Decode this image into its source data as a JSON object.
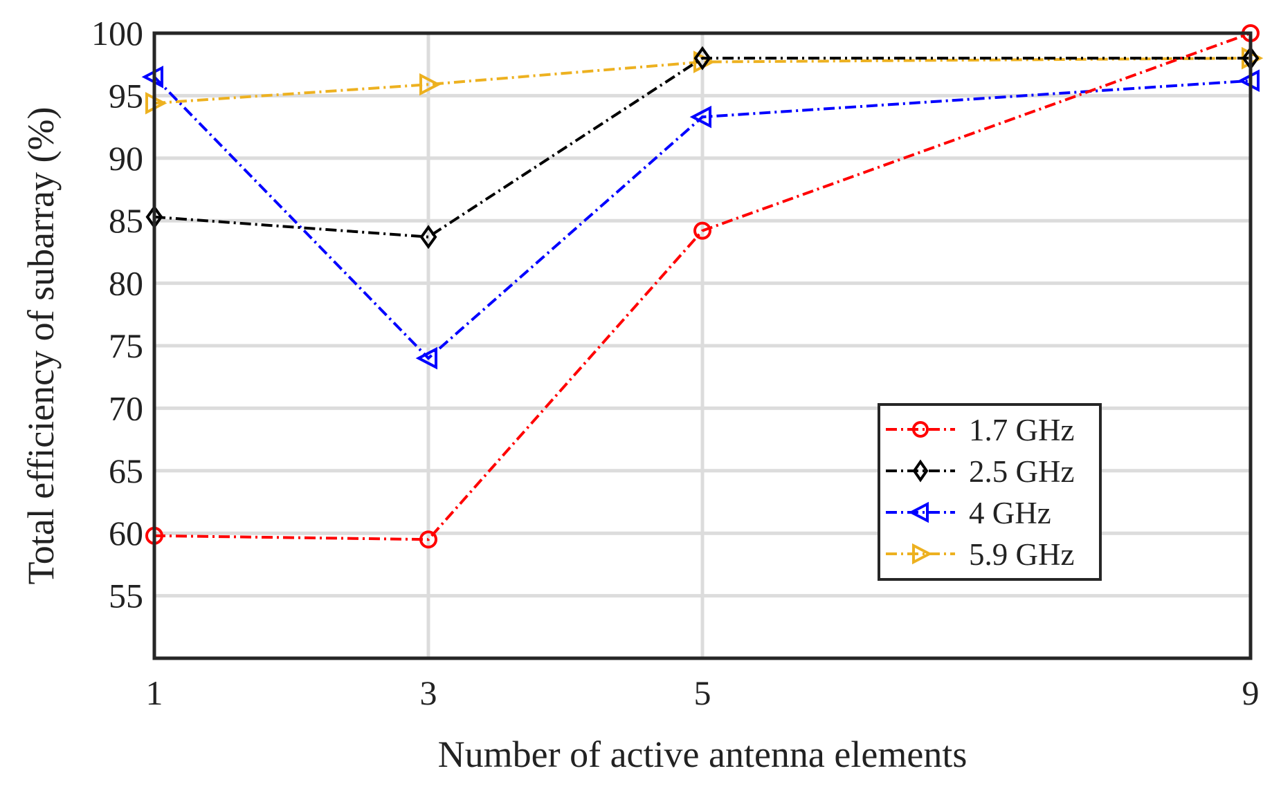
{
  "chart_data": {
    "type": "line",
    "title": "",
    "xlabel": "Number of active antenna elements",
    "ylabel": "Total efficiency of subarray (%)",
    "x": [
      1,
      3,
      5,
      9
    ],
    "xticks": [
      "1",
      "3",
      "5",
      "9"
    ],
    "xlim": [
      1,
      9
    ],
    "xgrid_at": [
      3,
      5
    ],
    "ylim": [
      50,
      100
    ],
    "yticks": [
      "55",
      "60",
      "65",
      "70",
      "75",
      "80",
      "85",
      "90",
      "95",
      "100"
    ],
    "ytick_values": [
      55,
      60,
      65,
      70,
      75,
      80,
      85,
      90,
      95,
      100
    ],
    "grid": true,
    "legend_position": "lower-right",
    "series": [
      {
        "name": "1.7 GHz",
        "values": [
          59.8,
          59.5,
          84.2,
          100.0
        ],
        "color": "#ff0000",
        "marker": "circle",
        "line_style": "dash-dot"
      },
      {
        "name": "2.5 GHz",
        "values": [
          85.3,
          83.7,
          98.0,
          98.0
        ],
        "color": "#000000",
        "marker": "diamond",
        "line_style": "dash-dot"
      },
      {
        "name": "4 GHz",
        "values": [
          96.5,
          74.0,
          93.3,
          96.2
        ],
        "color": "#0000ff",
        "marker": "triangle-left",
        "line_style": "dash-dot"
      },
      {
        "name": "5.9 GHz",
        "values": [
          94.4,
          95.9,
          97.7,
          98.0
        ],
        "color": "#edb120",
        "marker": "triangle-right",
        "line_style": "dash-dot"
      }
    ]
  }
}
